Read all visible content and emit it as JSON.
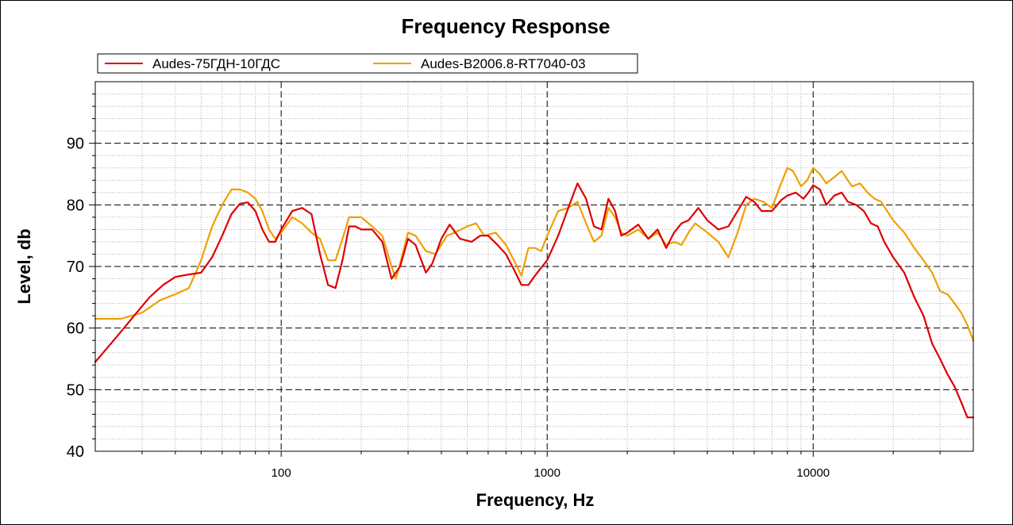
{
  "chart_data": {
    "type": "line",
    "title": "Frequency Response",
    "xlabel": "Frequency, Hz",
    "ylabel": "Level, db",
    "xscale": "log",
    "xlim": [
      20,
      40000
    ],
    "ylim": [
      40,
      100
    ],
    "xticks": [
      100,
      1000,
      10000
    ],
    "yticks": [
      40,
      50,
      60,
      70,
      80,
      90
    ],
    "grid": true,
    "legend": "top-left",
    "series": [
      {
        "name": "Audes-75ГДН-10ГДС",
        "color": "#dd0000",
        "points": [
          [
            20,
            54.5
          ],
          [
            24,
            58.5
          ],
          [
            28,
            62
          ],
          [
            32,
            65
          ],
          [
            36,
            67
          ],
          [
            40,
            68.3
          ],
          [
            45,
            68.7
          ],
          [
            50,
            69
          ],
          [
            55,
            71.5
          ],
          [
            60,
            75
          ],
          [
            65,
            78.5
          ],
          [
            70,
            80.2
          ],
          [
            75,
            80.4
          ],
          [
            80,
            79
          ],
          [
            85,
            76
          ],
          [
            90,
            74
          ],
          [
            95,
            74
          ],
          [
            100,
            76
          ],
          [
            110,
            79
          ],
          [
            120,
            79.5
          ],
          [
            130,
            78.5
          ],
          [
            140,
            72
          ],
          [
            150,
            67
          ],
          [
            160,
            66.5
          ],
          [
            170,
            71
          ],
          [
            180,
            76.5
          ],
          [
            190,
            76.5
          ],
          [
            200,
            76
          ],
          [
            220,
            76
          ],
          [
            240,
            74
          ],
          [
            260,
            68
          ],
          [
            280,
            70
          ],
          [
            300,
            74.5
          ],
          [
            320,
            73.5
          ],
          [
            350,
            69
          ],
          [
            370,
            70.5
          ],
          [
            400,
            74.5
          ],
          [
            430,
            76.8
          ],
          [
            470,
            74.5
          ],
          [
            520,
            74
          ],
          [
            560,
            75
          ],
          [
            600,
            75
          ],
          [
            650,
            73.5
          ],
          [
            700,
            72
          ],
          [
            750,
            69.5
          ],
          [
            800,
            67
          ],
          [
            850,
            67
          ],
          [
            900,
            68.5
          ],
          [
            1000,
            71
          ],
          [
            1100,
            75
          ],
          [
            1200,
            79.5
          ],
          [
            1300,
            83.5
          ],
          [
            1400,
            81
          ],
          [
            1500,
            76.5
          ],
          [
            1600,
            76
          ],
          [
            1700,
            81
          ],
          [
            1800,
            79
          ],
          [
            1900,
            75
          ],
          [
            2000,
            75.5
          ],
          [
            2200,
            76.8
          ],
          [
            2400,
            74.5
          ],
          [
            2600,
            76
          ],
          [
            2800,
            73
          ],
          [
            3000,
            75.5
          ],
          [
            3200,
            77
          ],
          [
            3400,
            77.5
          ],
          [
            3700,
            79.5
          ],
          [
            4000,
            77.5
          ],
          [
            4400,
            76
          ],
          [
            4800,
            76.5
          ],
          [
            5200,
            79
          ],
          [
            5600,
            81.3
          ],
          [
            6000,
            80.5
          ],
          [
            6400,
            79
          ],
          [
            7000,
            79
          ],
          [
            7600,
            80.8
          ],
          [
            8000,
            81.5
          ],
          [
            8600,
            82
          ],
          [
            9200,
            81
          ],
          [
            9600,
            82
          ],
          [
            10000,
            83.2
          ],
          [
            10600,
            82.5
          ],
          [
            11200,
            80
          ],
          [
            12000,
            81.5
          ],
          [
            12800,
            82
          ],
          [
            13500,
            80.5
          ],
          [
            14500,
            80
          ],
          [
            15500,
            79
          ],
          [
            16500,
            77
          ],
          [
            17500,
            76.5
          ],
          [
            18500,
            74
          ],
          [
            20000,
            71.5
          ],
          [
            22000,
            69
          ],
          [
            24000,
            65
          ],
          [
            26000,
            62
          ],
          [
            28000,
            57.5
          ],
          [
            30000,
            55
          ],
          [
            32000,
            52.5
          ],
          [
            34000,
            50.5
          ],
          [
            36000,
            48
          ],
          [
            38000,
            45.5
          ],
          [
            40000,
            45.5
          ]
        ]
      },
      {
        "name": "Audes-B2006.8-RT7040-03",
        "color": "#f0a000",
        "points": [
          [
            20,
            61.5
          ],
          [
            25,
            61.5
          ],
          [
            30,
            62.5
          ],
          [
            35,
            64.5
          ],
          [
            40,
            65.5
          ],
          [
            45,
            66.5
          ],
          [
            50,
            71
          ],
          [
            55,
            76.5
          ],
          [
            60,
            80
          ],
          [
            65,
            82.5
          ],
          [
            70,
            82.5
          ],
          [
            75,
            82
          ],
          [
            80,
            81
          ],
          [
            85,
            79
          ],
          [
            90,
            76
          ],
          [
            95,
            74.5
          ],
          [
            100,
            75.5
          ],
          [
            110,
            78
          ],
          [
            120,
            77
          ],
          [
            130,
            75.5
          ],
          [
            140,
            74.5
          ],
          [
            150,
            71
          ],
          [
            160,
            71
          ],
          [
            170,
            74.5
          ],
          [
            180,
            78
          ],
          [
            200,
            78
          ],
          [
            220,
            76.5
          ],
          [
            240,
            75
          ],
          [
            260,
            70
          ],
          [
            270,
            68
          ],
          [
            280,
            70.5
          ],
          [
            300,
            75.5
          ],
          [
            320,
            75
          ],
          [
            350,
            72.5
          ],
          [
            380,
            72
          ],
          [
            420,
            75
          ],
          [
            450,
            75.5
          ],
          [
            500,
            76.5
          ],
          [
            540,
            77
          ],
          [
            580,
            75
          ],
          [
            640,
            75.5
          ],
          [
            700,
            73.5
          ],
          [
            750,
            71
          ],
          [
            800,
            68.5
          ],
          [
            850,
            73
          ],
          [
            900,
            73
          ],
          [
            950,
            72.5
          ],
          [
            1000,
            75
          ],
          [
            1100,
            79
          ],
          [
            1200,
            79.5
          ],
          [
            1300,
            80.5
          ],
          [
            1400,
            77
          ],
          [
            1500,
            74
          ],
          [
            1600,
            75
          ],
          [
            1700,
            79.5
          ],
          [
            1800,
            78
          ],
          [
            1900,
            75.5
          ],
          [
            2000,
            75
          ],
          [
            2200,
            76
          ],
          [
            2400,
            74.5
          ],
          [
            2600,
            75.5
          ],
          [
            2800,
            73.5
          ],
          [
            3000,
            74
          ],
          [
            3200,
            73.5
          ],
          [
            3400,
            75.5
          ],
          [
            3600,
            77
          ],
          [
            4000,
            75.5
          ],
          [
            4400,
            74
          ],
          [
            4800,
            71.5
          ],
          [
            5200,
            75.5
          ],
          [
            5600,
            80
          ],
          [
            6000,
            81
          ],
          [
            6500,
            80.5
          ],
          [
            7000,
            79.5
          ],
          [
            7500,
            83
          ],
          [
            8000,
            86
          ],
          [
            8400,
            85.5
          ],
          [
            9000,
            83
          ],
          [
            9500,
            84
          ],
          [
            10000,
            86
          ],
          [
            10600,
            85
          ],
          [
            11200,
            83.5
          ],
          [
            12000,
            84.5
          ],
          [
            12800,
            85.5
          ],
          [
            13500,
            84
          ],
          [
            14000,
            83
          ],
          [
            15000,
            83.5
          ],
          [
            16000,
            82
          ],
          [
            17000,
            81
          ],
          [
            18000,
            80.5
          ],
          [
            20000,
            77.5
          ],
          [
            22000,
            75.5
          ],
          [
            24000,
            73
          ],
          [
            26000,
            71
          ],
          [
            28000,
            69
          ],
          [
            30000,
            66
          ],
          [
            32000,
            65.5
          ],
          [
            34000,
            64
          ],
          [
            36000,
            62.5
          ],
          [
            38000,
            60.5
          ],
          [
            40000,
            58
          ]
        ]
      }
    ]
  }
}
